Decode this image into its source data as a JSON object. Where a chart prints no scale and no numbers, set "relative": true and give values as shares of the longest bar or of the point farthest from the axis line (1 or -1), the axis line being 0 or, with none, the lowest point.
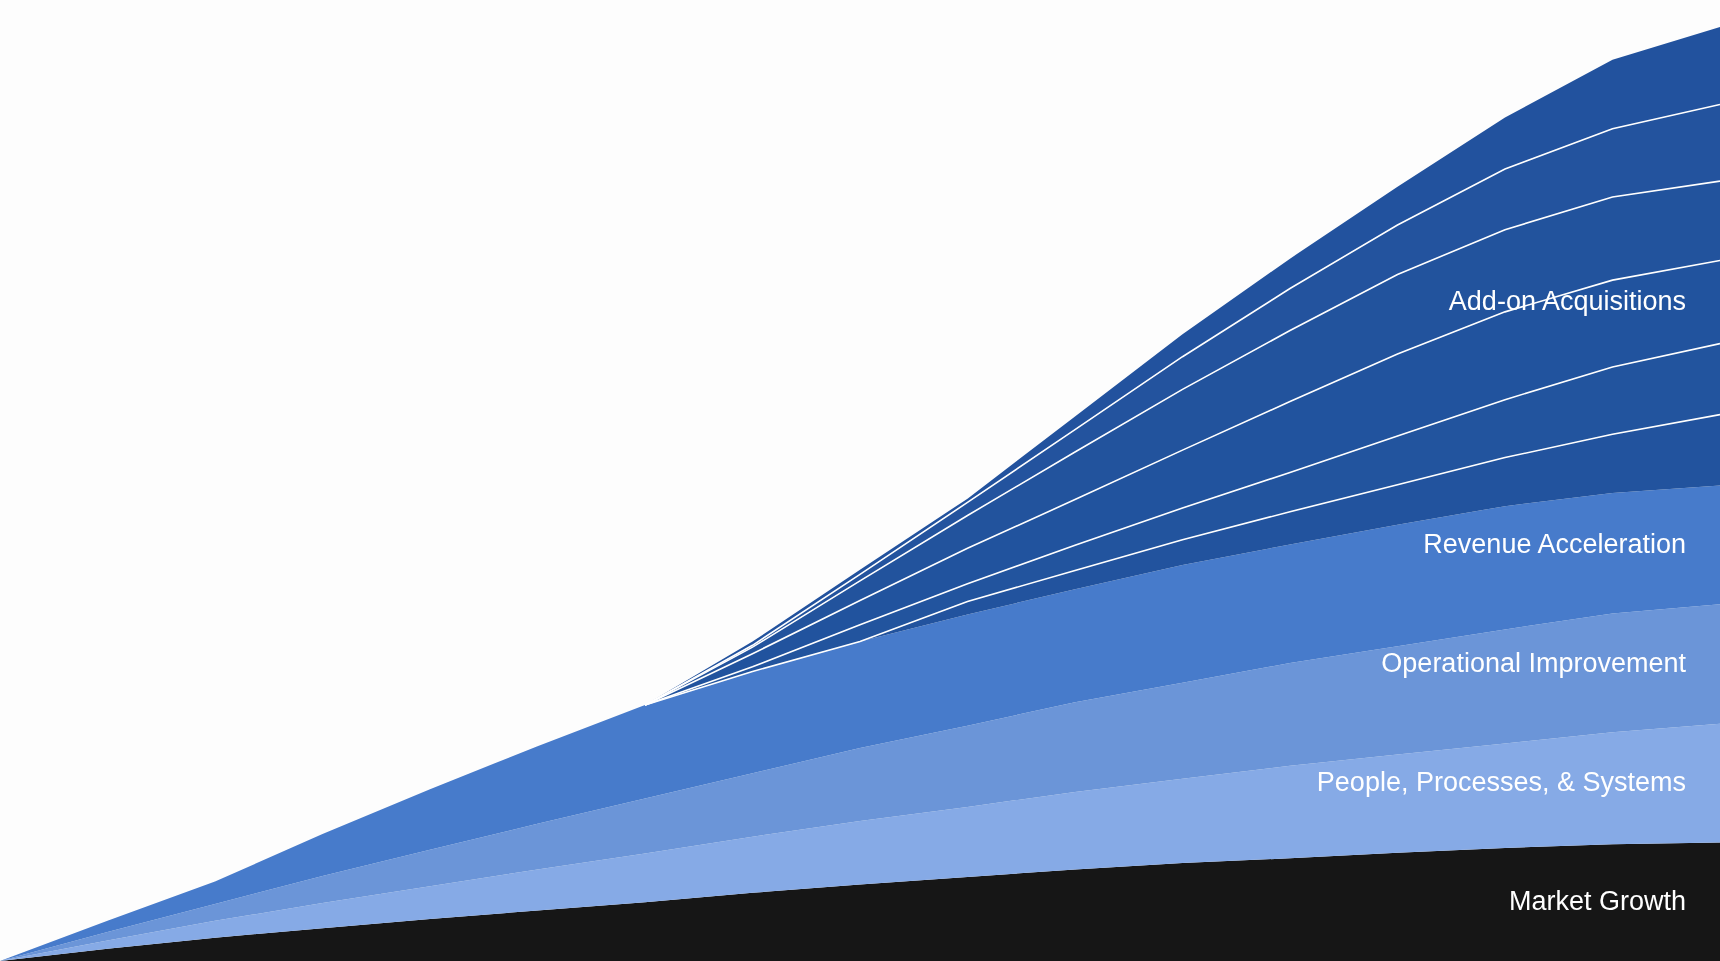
{
  "chart_data": {
    "type": "area",
    "relative": true,
    "stacked": true,
    "legend": false,
    "grid": false,
    "categories": [
      null,
      null,
      null,
      null,
      null,
      null,
      null,
      null,
      null,
      null,
      null,
      null,
      null,
      null,
      null,
      null,
      null
    ],
    "series": [
      {
        "name": "Market Growth",
        "color": "#161616",
        "values": [
          0,
          0.013,
          0.025,
          0.035,
          0.045,
          0.054,
          0.063,
          0.073,
          0.082,
          0.09,
          0.098,
          0.105,
          0.11,
          0.116,
          0.121,
          0.125,
          0.127
        ]
      },
      {
        "name": "People, Processes, & Systems",
        "color": "#86aae6",
        "values": [
          0,
          0.009,
          0.018,
          0.027,
          0.035,
          0.044,
          0.052,
          0.06,
          0.068,
          0.075,
          0.083,
          0.09,
          0.099,
          0.105,
          0.112,
          0.12,
          0.127
        ]
      },
      {
        "name": "Operational Improvement",
        "color": "#6b95d8",
        "values": [
          0,
          0.009,
          0.018,
          0.029,
          0.039,
          0.049,
          0.059,
          0.068,
          0.078,
          0.087,
          0.096,
          0.103,
          0.11,
          0.116,
          0.122,
          0.127,
          0.128
        ]
      },
      {
        "name": "Revenue Acceleration",
        "color": "#477bcb",
        "values": [
          0,
          0.012,
          0.024,
          0.045,
          0.065,
          0.083,
          0.1,
          0.109,
          0.114,
          0.119,
          0.121,
          0.126,
          0.127,
          0.13,
          0.132,
          0.129,
          0.127
        ]
      },
      {
        "color": "#22539e",
        "values": [
          0,
          0,
          0,
          0,
          0,
          0,
          0,
          0,
          0,
          0.014,
          0.02,
          0.027,
          0.035,
          0.043,
          0.052,
          0.063,
          0.076
        ]
      },
      {
        "color": "#22549e",
        "values": [
          0,
          0,
          0,
          0,
          0,
          0,
          0,
          0.005,
          0.018,
          0.019,
          0.027,
          0.034,
          0.042,
          0.052,
          0.062,
          0.072,
          0.076
        ]
      },
      {
        "name": "Add-on Acquisitions",
        "color": "#21539e",
        "values": [
          0,
          0,
          0,
          0,
          0,
          0,
          0,
          0.014,
          0.026,
          0.038,
          0.049,
          0.062,
          0.076,
          0.088,
          0.094,
          0.093,
          0.089
        ]
      },
      {
        "color": "#22539d",
        "values": [
          0,
          0,
          0,
          0,
          0,
          0,
          0,
          0.007,
          0.021,
          0.035,
          0.051,
          0.065,
          0.076,
          0.085,
          0.088,
          0.089,
          0.085
        ]
      },
      {
        "color": "#23539e",
        "values": [
          0,
          0,
          0,
          0,
          0,
          0,
          0,
          0.002,
          0.007,
          0.014,
          0.024,
          0.035,
          0.045,
          0.053,
          0.065,
          0.073,
          0.082
        ]
      },
      {
        "color": "#22529e",
        "values": [
          0,
          0,
          0,
          0,
          0,
          0,
          0,
          0.004,
          0.005,
          0.004,
          0.014,
          0.024,
          0.032,
          0.041,
          0.055,
          0.074,
          0.083
        ]
      }
    ]
  }
}
